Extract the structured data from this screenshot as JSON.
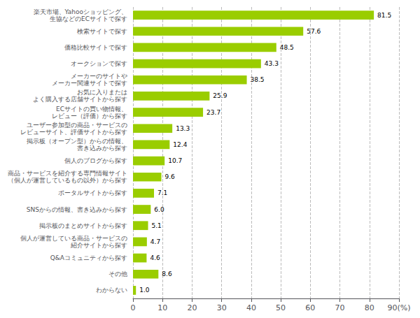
{
  "chart_data": {
    "type": "bar",
    "orientation": "horizontal",
    "categories": [
      "楽天市場、Yahooショッピング、\n生協などのECサイトで探す",
      "検索サイトで探す",
      "価格比較サイトで探す",
      "オークションで探す",
      "メーカーのサイトや\nメーカー関連サイトで探す",
      "お気に入りまたは\nよく購入する店舗サイトから探す",
      "ECサイトの買い物情報、\nレビュー（評価）から探す",
      "ユーザー参加型の商品・サービスの\nレビューサイト、評価サイトから探す",
      "掲示板（オープン型）からの情報、\n書き込みから探す",
      "個人のブログから探す",
      "商品・サービスを紹介する専門情報サイト\n（個人が運営しているもの以外）から探す",
      "ポータルサイトから探す",
      "SNSからの情報、書き込みから探す",
      "掲示板のまとめサイトから探す",
      "個人が運営している商品・サービスの\n紹介サイトから探す",
      "Q&Aコミュニティから探す",
      "その他",
      "わからない"
    ],
    "values": [
      81.5,
      57.6,
      48.5,
      43.3,
      38.5,
      25.9,
      23.7,
      13.3,
      12.4,
      10.7,
      9.6,
      7.1,
      6.0,
      5.1,
      4.7,
      4.6,
      8.6,
      1.0
    ],
    "value_labels": [
      "81.5",
      "57.6",
      "48.5",
      "43.3",
      "38.5",
      "25.9",
      "23.7",
      "13.3",
      "12.4",
      "10.7",
      "9.6",
      "7.1",
      "6.0",
      "5.1",
      "4.7",
      "4.6",
      "8.6",
      "1.0"
    ],
    "data_labels": true,
    "color": "#9acd00",
    "xlim": [
      0,
      90
    ],
    "xticks": [
      0,
      10,
      20,
      30,
      40,
      50,
      60,
      70,
      80,
      {
        "value": 90,
        "label": "90(%)"
      }
    ],
    "grid": true
  }
}
